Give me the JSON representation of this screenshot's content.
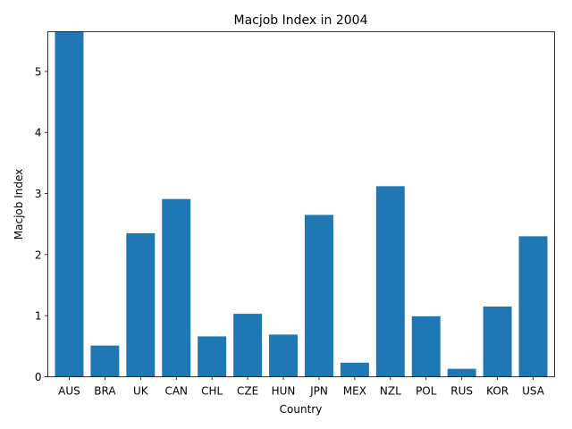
{
  "chart_data": {
    "type": "bar",
    "title": "Macjob Index in 2004",
    "xlabel": "Country",
    "ylabel": "Macjob Index",
    "categories": [
      "AUS",
      "BRA",
      "UK",
      "CAN",
      "CHL",
      "CZE",
      "HUN",
      "JPN",
      "MEX",
      "NZL",
      "POL",
      "RUS",
      "KOR",
      "USA"
    ],
    "values": [
      5.65,
      0.51,
      2.35,
      2.91,
      0.66,
      1.03,
      0.69,
      2.65,
      0.23,
      3.12,
      0.99,
      0.13,
      1.15,
      2.3
    ],
    "ylim": [
      0,
      5.65
    ],
    "yticks": [
      0,
      1,
      2,
      3,
      4,
      5
    ],
    "grid": false,
    "bar_color": "#1f77b4"
  }
}
